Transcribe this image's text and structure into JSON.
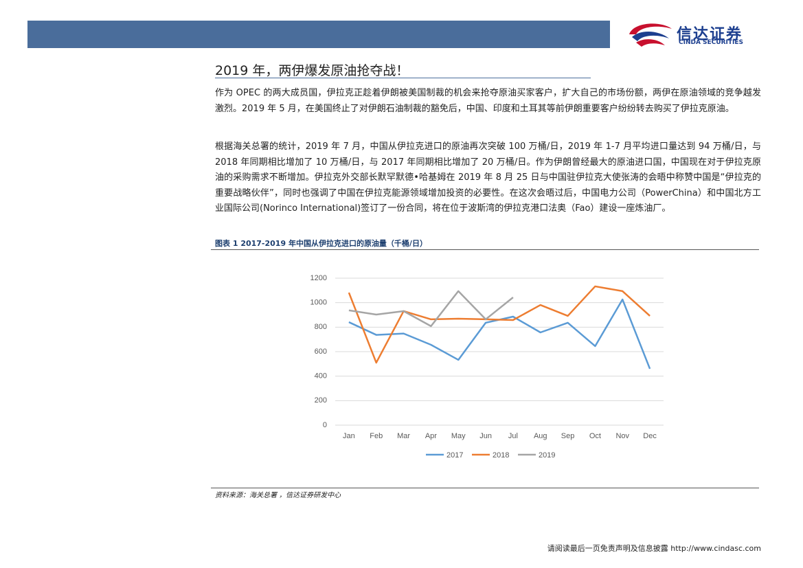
{
  "header": {
    "logo_cn": "信达证券",
    "logo_en": "CINDA SECURITIES"
  },
  "section_title": "2019 年，两伊爆发原油抢夺战！",
  "paragraphs": [
    "作为 OPEC 的两大成员国，伊拉克正趁着伊朗被美国制裁的机会来抢夺原油买家客户，扩大自己的市场份额，两伊在原油领域的竞争越发激烈。2019 年 5 月，在美国终止了对伊朗石油制裁的豁免后，中国、印度和土耳其等前伊朗重要客户纷纷转去购买了伊拉克原油。",
    "根据海关总署的统计，2019 年 7 月，中国从伊拉克进口的原油再次突破 100 万桶/日，2019 年 1-7 月平均进口量达到 94 万桶/日，与 2018 年同期相比增加了 10 万桶/日，与 2017 年同期相比增加了 20 万桶/日。作为伊朗曾经最大的原油进口国，中国现在对于伊拉克原油的采购需求不断增加。伊拉克外交部长默罕默德•哈基姆在 2019 年 8 月 25 日与中国驻伊拉克大使张涛的会晤中称赞中国是“伊拉克的重要战略伙伴”，同时也强调了中国在伊拉克能源领域增加投资的必要性。在这次会晤过后，中国电力公司（PowerChina）和中国北方工业国际公司(Norinco International)签订了一份合同，将在位于波斯湾的伊拉克港口法奥（Fao）建设一座炼油厂。"
  ],
  "figure_caption": "图表 1  2017-2019 年中国从伊拉克进口的原油量（千桶/日）",
  "chart_data": {
    "type": "line",
    "categories": [
      "Jan",
      "Feb",
      "Mar",
      "Apr",
      "May",
      "Jun",
      "Jul",
      "Aug",
      "Sep",
      "Oct",
      "Nov",
      "Dec"
    ],
    "series": [
      {
        "name": "2017",
        "color": "#5b9bd5",
        "values": [
          841,
          737,
          748,
          656,
          533,
          836,
          886,
          757,
          836,
          645,
          1026,
          460
        ]
      },
      {
        "name": "2018",
        "color": "#ed7d31",
        "values": [
          1082,
          510,
          931,
          864,
          869,
          864,
          858,
          981,
          892,
          1133,
          1094,
          892
        ]
      },
      {
        "name": "2019",
        "color": "#a5a5a5",
        "values": [
          937,
          903,
          931,
          808,
          1094,
          864,
          1043,
          null,
          null,
          null,
          null,
          null
        ]
      }
    ],
    "ylim": [
      0,
      1200
    ],
    "yticks": [
      0,
      200,
      400,
      600,
      800,
      1000,
      1200
    ],
    "grid": true,
    "legend": "bottom"
  },
  "source": "资料来源：海关总署 ，信达证券研发中心",
  "footer": {
    "disclaimer": "请阅读最后一页免责声明及信息披露",
    "url": "http://www.cindasc.com"
  }
}
